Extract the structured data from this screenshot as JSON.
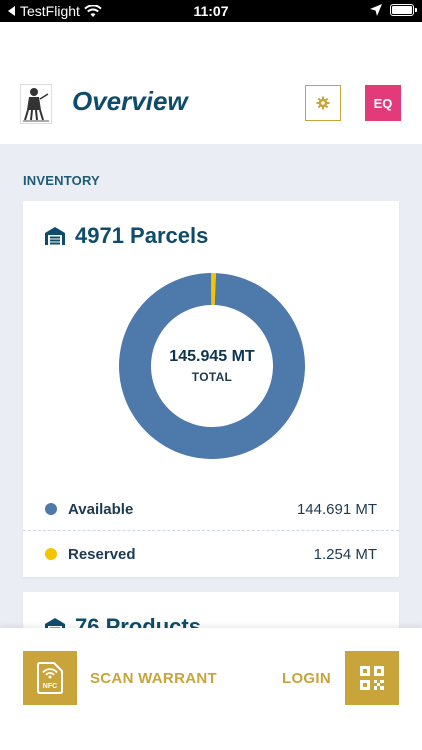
{
  "status_bar": {
    "back_app": "TestFlight",
    "time": "11:07",
    "icons": [
      "back-arrow-icon",
      "wifi-icon",
      "location-icon",
      "battery-icon"
    ]
  },
  "header": {
    "title": "Overview",
    "settings_icon": "gear-icon",
    "avatar_initials": "EQ"
  },
  "section": {
    "label": "INVENTORY"
  },
  "parcels_card": {
    "icon": "warehouse-icon",
    "title": "4971 Parcels",
    "total_value": "145.945 MT",
    "total_label": "TOTAL",
    "legend": [
      {
        "name": "Available",
        "amount": "144.691 MT",
        "color": "#4e79ab"
      },
      {
        "name": "Reserved",
        "amount": "1.254 MT",
        "color": "#f5c400"
      }
    ]
  },
  "products_card": {
    "icon": "warehouse-icon",
    "title": "76 Products"
  },
  "chart_data": {
    "type": "pie",
    "title": "",
    "categories": [
      "Available",
      "Reserved"
    ],
    "values": [
      144.691,
      1.254
    ],
    "colors": [
      "#4e79ab",
      "#f5c400"
    ],
    "center_label": "145.945 MT TOTAL"
  },
  "bottom_bar": {
    "scan_label": "SCAN WARRANT",
    "login_label": "LOGIN",
    "nfc_icon": "nfc-card-icon",
    "qr_icon": "qr-code-icon",
    "nfc_text": "NFC"
  },
  "colors": {
    "brand_navy": "#0f4c6b",
    "gold": "#c9a43b",
    "avatar_pink": "#e33a7a",
    "content_bg": "#eaedf3"
  }
}
